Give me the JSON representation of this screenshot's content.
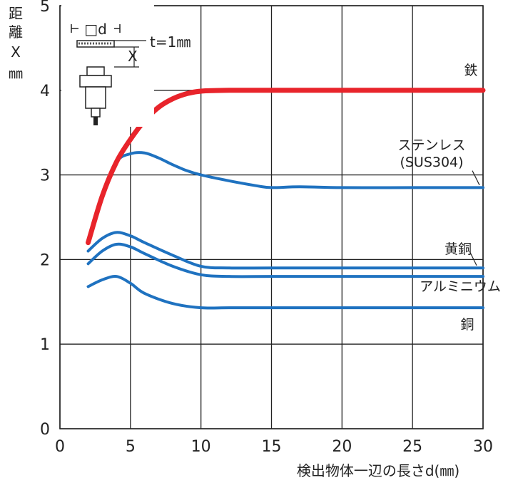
{
  "chart_data": {
    "type": "line",
    "title": "",
    "xlabel": "検出物体一辺の長さd(㎜)",
    "ylabel": "距離X(㎜)",
    "xlim": [
      0,
      30
    ],
    "ylim": [
      0,
      5
    ],
    "x_ticks": [
      "0",
      "5",
      "10",
      "15",
      "20",
      "25",
      "30"
    ],
    "y_ticks": [
      "0",
      "1",
      "2",
      "3",
      "4",
      "5"
    ],
    "grid": true,
    "inset_text": [
      "□d",
      "t=1㎜",
      "X"
    ],
    "series": [
      {
        "name": "鉄",
        "color": "#e8242b",
        "x": [
          2,
          3,
          4,
          5,
          6,
          7,
          8,
          9,
          10,
          12,
          15,
          20,
          25,
          30
        ],
        "y": [
          2.2,
          2.75,
          3.15,
          3.42,
          3.64,
          3.8,
          3.9,
          3.96,
          3.99,
          4.0,
          4.0,
          4.0,
          4.0,
          4.0
        ]
      },
      {
        "name": "ステンレス(SUS304)",
        "color": "#1f72c0",
        "x": [
          2,
          3,
          4,
          5,
          6,
          7,
          8,
          9,
          10,
          12,
          14,
          15,
          17,
          20,
          25,
          30
        ],
        "y": [
          2.2,
          2.75,
          3.15,
          3.25,
          3.26,
          3.2,
          3.12,
          3.05,
          3.0,
          2.93,
          2.87,
          2.85,
          2.86,
          2.85,
          2.85,
          2.85
        ]
      },
      {
        "name": "黄銅",
        "color": "#1f72c0",
        "x": [
          2,
          3,
          4,
          5,
          6,
          8,
          10,
          12,
          15,
          20,
          25,
          30
        ],
        "y": [
          2.1,
          2.25,
          2.32,
          2.28,
          2.2,
          2.05,
          1.92,
          1.9,
          1.9,
          1.9,
          1.9,
          1.9
        ]
      },
      {
        "name": "アルミニウム",
        "color": "#1f72c0",
        "x": [
          2,
          3,
          4,
          5,
          6,
          8,
          10,
          12,
          15,
          20,
          25,
          30
        ],
        "y": [
          1.95,
          2.1,
          2.18,
          2.15,
          2.07,
          1.92,
          1.82,
          1.8,
          1.8,
          1.8,
          1.8,
          1.8
        ]
      },
      {
        "name": "銅",
        "color": "#1f72c0",
        "x": [
          2,
          3,
          4,
          5,
          6,
          8,
          10,
          12,
          15,
          20,
          25,
          30
        ],
        "y": [
          1.68,
          1.76,
          1.8,
          1.72,
          1.6,
          1.48,
          1.43,
          1.43,
          1.43,
          1.43,
          1.43,
          1.43
        ]
      }
    ]
  }
}
